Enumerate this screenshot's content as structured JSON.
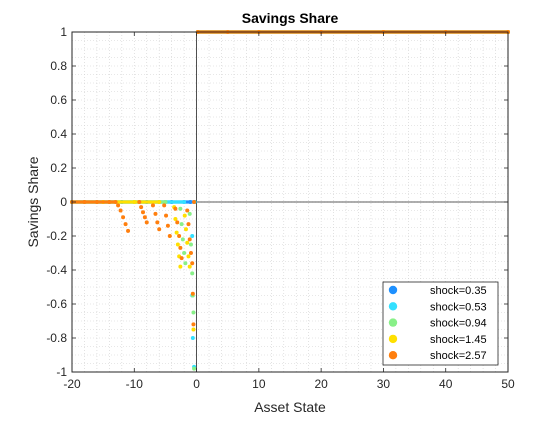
{
  "chart_data": {
    "type": "scatter",
    "title": "Savings Share",
    "xlabel": "Asset State",
    "ylabel": "Savings Share",
    "xlim": [
      -20,
      50
    ],
    "ylim": [
      -1,
      1
    ],
    "xticks": [
      -20,
      -10,
      0,
      10,
      20,
      30,
      40,
      50
    ],
    "yticks": [
      1,
      0.8,
      0.6,
      0.4,
      0.2,
      0,
      -0.2,
      -0.4,
      -0.6,
      -0.8,
      -1
    ],
    "xtick_labels": [
      "-20",
      "-10",
      "0",
      "10",
      "20",
      "30",
      "40",
      "50"
    ],
    "ytick_labels": [
      "1",
      "0.8",
      "0.6",
      "0.4",
      "0.2",
      "0",
      "-0.2",
      "-0.4",
      "-0.6",
      "-0.8",
      "-1"
    ],
    "grid": "dotted minor grid",
    "legend_position": "bottom-right",
    "series": [
      {
        "name": "shock=0.35",
        "color": "#1e90ff",
        "points": [
          [
            -20,
            0
          ],
          [
            -18,
            0
          ],
          [
            -16,
            0
          ],
          [
            -14,
            0
          ],
          [
            -12,
            0
          ],
          [
            -10,
            0
          ],
          [
            -8,
            0
          ],
          [
            -6,
            0
          ],
          [
            -4,
            0
          ],
          [
            -2,
            0
          ],
          [
            -1,
            0
          ],
          [
            -0.3,
            0
          ],
          [
            0.2,
            1
          ],
          [
            5,
            1
          ],
          [
            10,
            1
          ],
          [
            20,
            1
          ],
          [
            30,
            1
          ],
          [
            40,
            1
          ],
          [
            50,
            1
          ]
        ]
      },
      {
        "name": "shock=0.53",
        "color": "#33e0ff",
        "points": [
          [
            -20,
            0
          ],
          [
            -15,
            0
          ],
          [
            -10,
            0
          ],
          [
            -5,
            0
          ],
          [
            -2,
            0
          ],
          [
            -0.7,
            -0.2
          ],
          [
            -0.7,
            -0.55
          ],
          [
            -0.6,
            -0.8
          ],
          [
            -0.4,
            -0.97
          ],
          [
            -0.3,
            0
          ],
          [
            0.2,
            1
          ],
          [
            10,
            1
          ],
          [
            30,
            1
          ],
          [
            50,
            1
          ]
        ]
      },
      {
        "name": "shock=0.94",
        "color": "#88f088",
        "points": [
          [
            -20,
            0
          ],
          [
            -15,
            0
          ],
          [
            -10,
            0
          ],
          [
            -5,
            0
          ],
          [
            -2.6,
            -0.04
          ],
          [
            -2.4,
            -0.13
          ],
          [
            -2.2,
            -0.22
          ],
          [
            -2.0,
            -0.3
          ],
          [
            -1.8,
            -0.36
          ],
          [
            -1.1,
            -0.07
          ],
          [
            -0.9,
            -0.25
          ],
          [
            -0.7,
            -0.42
          ],
          [
            -0.6,
            -0.55
          ],
          [
            -0.5,
            -0.65
          ],
          [
            -0.4,
            -0.98
          ],
          [
            0.2,
            1
          ],
          [
            10,
            1
          ],
          [
            30,
            1
          ],
          [
            50,
            1
          ]
        ]
      },
      {
        "name": "shock=1.45",
        "color": "#ffe000",
        "points": [
          [
            -20,
            0
          ],
          [
            -15,
            0
          ],
          [
            -10,
            0
          ],
          [
            -6,
            0
          ],
          [
            -3.6,
            -0.03
          ],
          [
            -3.4,
            -0.1
          ],
          [
            -3.2,
            -0.18
          ],
          [
            -3.0,
            -0.25
          ],
          [
            -2.8,
            -0.32
          ],
          [
            -2.6,
            -0.38
          ],
          [
            -1.9,
            -0.08
          ],
          [
            -1.7,
            -0.16
          ],
          [
            -1.5,
            -0.24
          ],
          [
            -1.3,
            -0.32
          ],
          [
            -1.1,
            -0.38
          ],
          [
            -0.5,
            -0.75
          ],
          [
            0.2,
            1
          ],
          [
            10,
            1
          ],
          [
            30,
            1
          ],
          [
            50,
            1
          ]
        ]
      },
      {
        "name": "shock=2.57",
        "color": "#ff7f0e",
        "points": [
          [
            -20,
            0
          ],
          [
            -18,
            0
          ],
          [
            -16,
            0
          ],
          [
            -14,
            0
          ],
          [
            -13,
            0
          ],
          [
            -12.6,
            -0.02
          ],
          [
            -12.2,
            -0.05
          ],
          [
            -11.8,
            -0.09
          ],
          [
            -11.4,
            -0.13
          ],
          [
            -11.0,
            -0.17
          ],
          [
            -9.2,
            0
          ],
          [
            -8.9,
            -0.03
          ],
          [
            -8.6,
            -0.06
          ],
          [
            -8.3,
            -0.09
          ],
          [
            -8.0,
            -0.12
          ],
          [
            -7.0,
            -0.02
          ],
          [
            -6.6,
            -0.07
          ],
          [
            -6.3,
            -0.12
          ],
          [
            -6.0,
            -0.16
          ],
          [
            -5.2,
            -0.02
          ],
          [
            -4.9,
            -0.08
          ],
          [
            -4.6,
            -0.14
          ],
          [
            -4.3,
            -0.2
          ],
          [
            -3.4,
            -0.04
          ],
          [
            -3.1,
            -0.12
          ],
          [
            -2.8,
            -0.2
          ],
          [
            -2.6,
            -0.27
          ],
          [
            -2.4,
            -0.33
          ],
          [
            -1.5,
            -0.05
          ],
          [
            -1.3,
            -0.13
          ],
          [
            -1.1,
            -0.22
          ],
          [
            -0.9,
            -0.3
          ],
          [
            -0.7,
            -0.36
          ],
          [
            -0.6,
            -0.54
          ],
          [
            -0.5,
            -0.72
          ],
          [
            -0.4,
            0
          ],
          [
            0.2,
            1
          ],
          [
            5,
            1
          ],
          [
            10,
            1
          ],
          [
            20,
            1
          ],
          [
            30,
            1
          ],
          [
            40,
            1
          ],
          [
            50,
            1
          ]
        ]
      }
    ]
  }
}
